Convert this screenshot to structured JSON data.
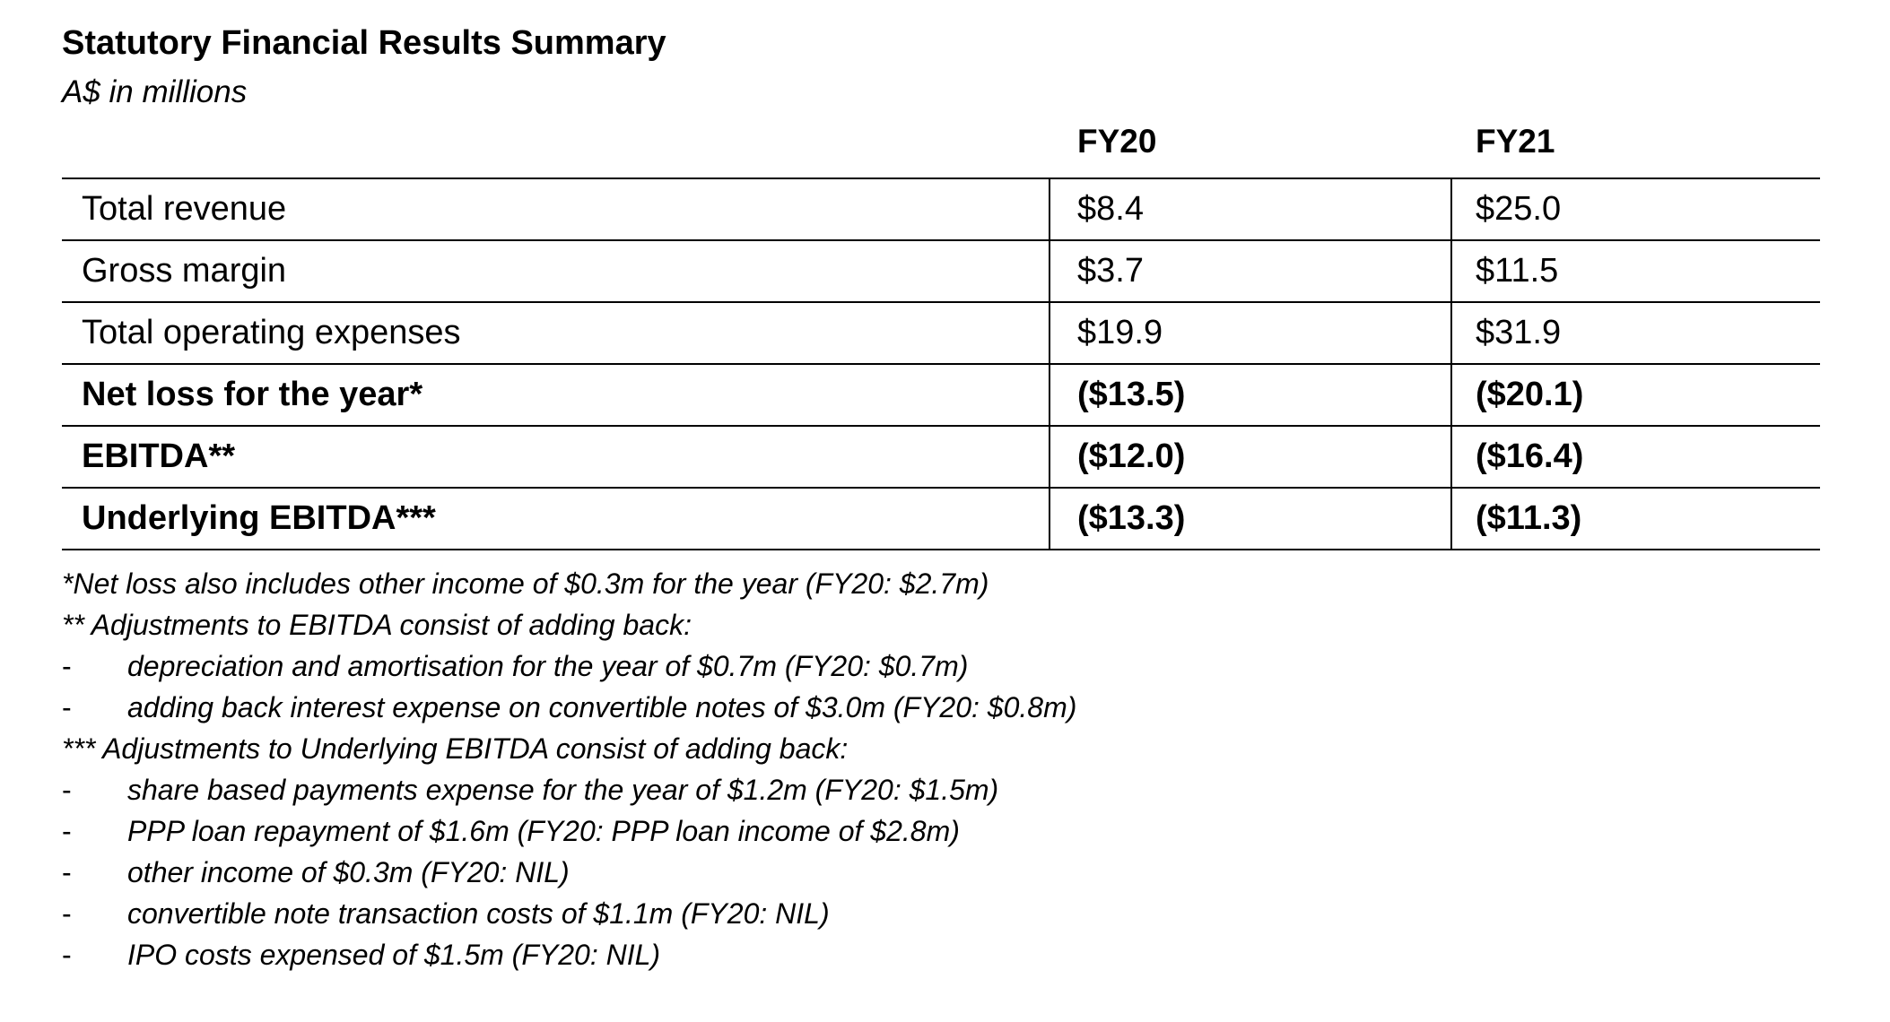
{
  "title": "Statutory Financial Results Summary",
  "subtitle": "A$ in millions",
  "columns": [
    "FY20",
    "FY21"
  ],
  "rows": [
    {
      "label": "Total revenue",
      "fy20": "$8.4",
      "fy21": "$25.0",
      "bold": false
    },
    {
      "label": "Gross margin",
      "fy20": "$3.7",
      "fy21": "$11.5",
      "bold": false
    },
    {
      "label": "Total operating expenses",
      "fy20": "$19.9",
      "fy21": "$31.9",
      "bold": false
    },
    {
      "label": "Net loss for the year*",
      "fy20": "($13.5)",
      "fy21": "($20.1)",
      "bold": true
    },
    {
      "label": "EBITDA**",
      "fy20": "($12.0)",
      "fy21": "($16.4)",
      "bold": true
    },
    {
      "label": "Underlying EBITDA***",
      "fy20": "($13.3)",
      "fy21": "($11.3)",
      "bold": true
    }
  ],
  "notes": {
    "net_loss_note": "*Net loss also includes other income of $0.3m for the year (FY20: $2.7m)",
    "ebitda_heading": "** Adjustments to EBITDA consist of adding back:",
    "ebitda_items": [
      "depreciation and amortisation for the year of $0.7m (FY20: $0.7m)",
      "adding back interest expense on convertible notes of $3.0m (FY20: $0.8m)"
    ],
    "underlying_heading": "*** Adjustments to Underlying EBITDA consist of adding back:",
    "underlying_items": [
      "share based payments expense for the year of $1.2m (FY20: $1.5m)",
      "PPP loan repayment of $1.6m (FY20: PPP loan income of $2.8m)",
      "other income of $0.3m (FY20: NIL)",
      "convertible note transaction costs of $1.1m (FY20: NIL)",
      "IPO costs expensed of $1.5m (FY20: NIL)"
    ],
    "dash": "-"
  }
}
